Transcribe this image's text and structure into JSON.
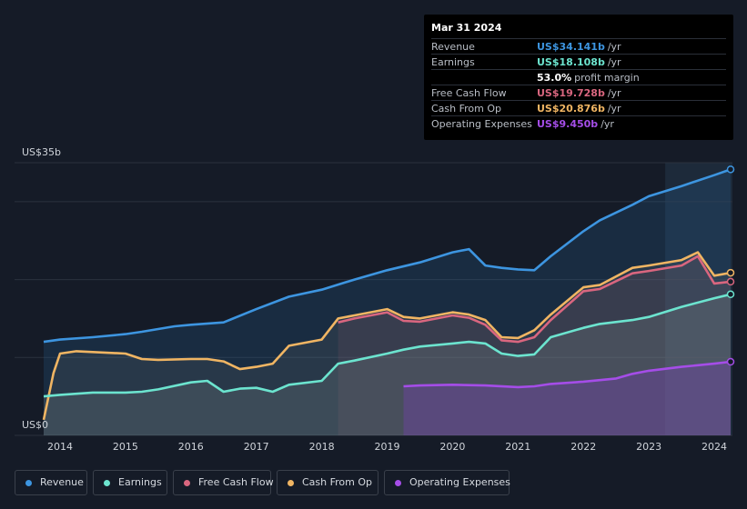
{
  "tooltip": {
    "date": "Mar 31 2024",
    "rows": [
      {
        "label": "Revenue",
        "value": "US$34.141b",
        "unit": "/yr",
        "color": "#3d95e0"
      },
      {
        "label": "Earnings",
        "value": "US$18.108b",
        "unit": "/yr",
        "color": "#6ce4cf"
      },
      {
        "label": "",
        "value": "53.0%",
        "unit": "profit margin",
        "color": "#ffffff"
      },
      {
        "label": "Free Cash Flow",
        "value": "US$19.728b",
        "unit": "/yr",
        "color": "#d9667f"
      },
      {
        "label": "Cash From Op",
        "value": "US$20.876b",
        "unit": "/yr",
        "color": "#f0b563"
      },
      {
        "label": "Operating Expenses",
        "value": "US$9.450b",
        "unit": "/yr",
        "color": "#a54de8"
      }
    ]
  },
  "legend": [
    {
      "label": "Revenue",
      "color": "#3d95e0"
    },
    {
      "label": "Earnings",
      "color": "#6ce4cf"
    },
    {
      "label": "Free Cash Flow",
      "color": "#d9667f"
    },
    {
      "label": "Cash From Op",
      "color": "#f0b563"
    },
    {
      "label": "Operating Expenses",
      "color": "#a54de8"
    }
  ],
  "chart_data": {
    "type": "area",
    "y_top_label": "US$35b",
    "y_bottom_label": "US$0",
    "ylim": [
      0,
      35
    ],
    "xlim": [
      2013.7,
      2024.25
    ],
    "x_ticks": [
      "2014",
      "2015",
      "2016",
      "2017",
      "2018",
      "2019",
      "2020",
      "2021",
      "2022",
      "2023",
      "2024"
    ],
    "x_tick_values": [
      2014,
      2015,
      2016,
      2017,
      2018,
      2019,
      2020,
      2021,
      2022,
      2023,
      2024
    ],
    "forecast_start": 2023.25,
    "series": [
      {
        "name": "Revenue",
        "color": "#3d95e0",
        "x": [
          2013.75,
          2014.0,
          2014.5,
          2015.0,
          2015.25,
          2015.75,
          2016.0,
          2016.5,
          2017.0,
          2017.5,
          2018.0,
          2018.5,
          2019.0,
          2019.5,
          2020.0,
          2020.25,
          2020.5,
          2020.75,
          2021.0,
          2021.25,
          2021.5,
          2022.0,
          2022.25,
          2022.75,
          2023.0,
          2023.5,
          2024.0,
          2024.25
        ],
        "y": [
          12.0,
          12.3,
          12.6,
          13.0,
          13.3,
          14.0,
          14.2,
          14.5,
          16.2,
          17.8,
          18.7,
          20.0,
          21.2,
          22.2,
          23.5,
          23.9,
          21.8,
          21.5,
          21.3,
          21.2,
          23.0,
          26.2,
          27.6,
          29.6,
          30.7,
          32.0,
          33.4,
          34.141
        ]
      },
      {
        "name": "Cash From Op",
        "color": "#f0b563",
        "x": [
          2013.75,
          2013.9,
          2014.0,
          2014.25,
          2014.5,
          2015.0,
          2015.25,
          2015.5,
          2016.0,
          2016.25,
          2016.5,
          2016.75,
          2017.0,
          2017.25,
          2017.5,
          2018.0,
          2018.25,
          2018.5,
          2019.0,
          2019.25,
          2019.5,
          2020.0,
          2020.25,
          2020.5,
          2020.75,
          2021.0,
          2021.25,
          2021.5,
          2022.0,
          2022.25,
          2022.75,
          2023.0,
          2023.5,
          2023.75,
          2024.0,
          2024.25
        ],
        "y": [
          2.0,
          8.0,
          10.5,
          10.8,
          10.7,
          10.5,
          9.8,
          9.7,
          9.8,
          9.8,
          9.5,
          8.5,
          8.8,
          9.2,
          11.5,
          12.3,
          15.0,
          15.4,
          16.2,
          15.2,
          15.0,
          15.8,
          15.5,
          14.8,
          12.6,
          12.5,
          13.5,
          15.5,
          19.0,
          19.3,
          21.5,
          21.8,
          22.5,
          23.5,
          20.5,
          20.876
        ]
      },
      {
        "name": "Free Cash Flow",
        "color": "#d9667f",
        "x": [
          2018.25,
          2018.5,
          2019.0,
          2019.25,
          2019.5,
          2020.0,
          2020.25,
          2020.5,
          2020.75,
          2021.0,
          2021.25,
          2021.5,
          2022.0,
          2022.25,
          2022.75,
          2023.0,
          2023.5,
          2023.75,
          2024.0,
          2024.25
        ],
        "y": [
          14.5,
          15.0,
          15.8,
          14.7,
          14.6,
          15.4,
          15.1,
          14.2,
          12.2,
          12.0,
          12.6,
          14.8,
          18.5,
          18.8,
          20.8,
          21.1,
          21.8,
          23.0,
          19.5,
          19.728
        ]
      },
      {
        "name": "Earnings",
        "color": "#6ce4cf",
        "x": [
          2013.75,
          2014.0,
          2014.5,
          2015.0,
          2015.25,
          2015.5,
          2016.0,
          2016.25,
          2016.5,
          2016.75,
          2017.0,
          2017.25,
          2017.5,
          2018.0,
          2018.25,
          2018.5,
          2019.0,
          2019.25,
          2019.5,
          2020.0,
          2020.25,
          2020.5,
          2020.75,
          2021.0,
          2021.25,
          2021.5,
          2022.0,
          2022.25,
          2022.75,
          2023.0,
          2023.5,
          2024.0,
          2024.25
        ],
        "y": [
          5.0,
          5.2,
          5.5,
          5.5,
          5.6,
          5.9,
          6.8,
          7.0,
          5.6,
          6.0,
          6.1,
          5.6,
          6.5,
          7.0,
          9.2,
          9.6,
          10.5,
          11.0,
          11.4,
          11.8,
          12.0,
          11.8,
          10.5,
          10.2,
          10.4,
          12.6,
          13.8,
          14.3,
          14.8,
          15.2,
          16.5,
          17.6,
          18.108
        ]
      },
      {
        "name": "Operating Expenses",
        "color": "#a54de8",
        "x": [
          2019.25,
          2019.5,
          2020.0,
          2020.5,
          2021.0,
          2021.25,
          2021.5,
          2022.0,
          2022.5,
          2022.75,
          2023.0,
          2023.5,
          2024.0,
          2024.25
        ],
        "y": [
          6.3,
          6.4,
          6.5,
          6.4,
          6.2,
          6.3,
          6.6,
          6.9,
          7.3,
          7.9,
          8.3,
          8.8,
          9.2,
          9.45
        ]
      }
    ]
  }
}
